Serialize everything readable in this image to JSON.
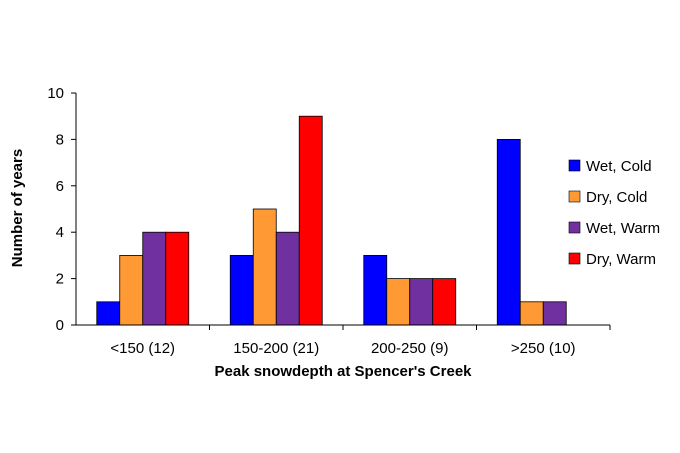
{
  "chart_data": {
    "type": "bar",
    "categories": [
      "<150 (12)",
      "150-200 (21)",
      "200-250 (9)",
      ">250 (10)"
    ],
    "series": [
      {
        "name": "Wet, Cold",
        "color": "#0000ff",
        "values": [
          1,
          3,
          3,
          8
        ]
      },
      {
        "name": "Dry, Cold",
        "color": "#ff9933",
        "values": [
          3,
          5,
          2,
          1
        ]
      },
      {
        "name": "Wet, Warm",
        "color": "#7030a0",
        "values": [
          4,
          4,
          2,
          1
        ]
      },
      {
        "name": "Dry, Warm",
        "color": "#ff0000",
        "values": [
          4,
          9,
          2,
          0
        ]
      }
    ],
    "title": "",
    "xlabel": "Peak snowdepth at Spencer's Creek",
    "ylabel": "Number of years",
    "ylim": [
      0,
      10
    ],
    "yticks": [
      "0",
      "2",
      "4",
      "6",
      "8",
      "10"
    ],
    "grid": false,
    "legend_position": "right"
  }
}
